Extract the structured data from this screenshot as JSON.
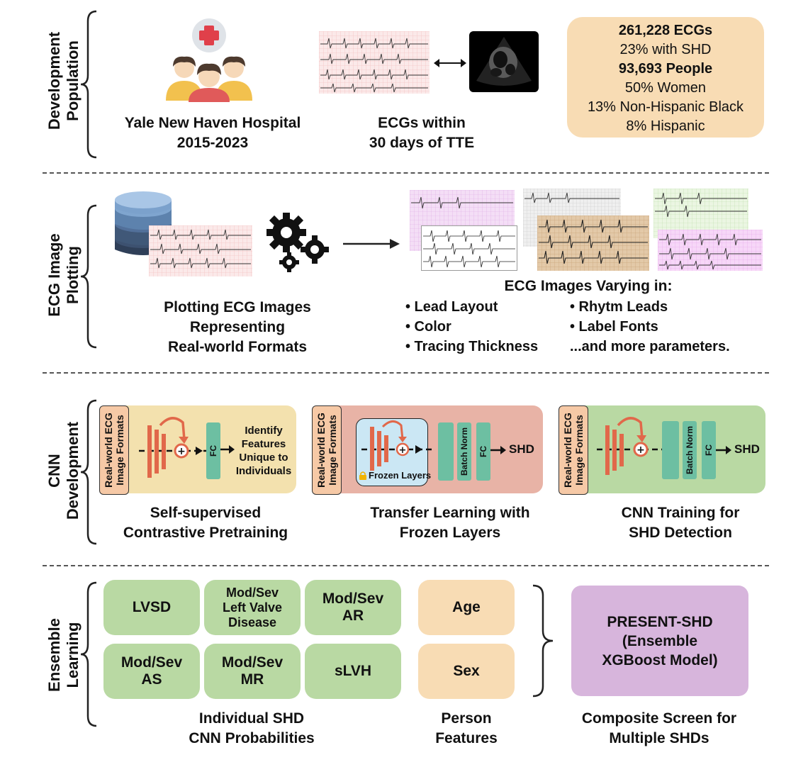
{
  "sections": {
    "development": [
      "Development",
      "Population"
    ],
    "plotting": [
      "ECG Image",
      "Plotting"
    ],
    "cnn": [
      "CNN",
      "Development"
    ],
    "ensemble": [
      "Ensemble",
      "Learning"
    ]
  },
  "population": {
    "hospital": [
      "Yale New Haven Hospital",
      "2015-2023"
    ],
    "ecg_caption": [
      "ECGs within",
      "30 days of TTE"
    ],
    "stats": {
      "ecgs": "261,228 ECGs",
      "shd": "23% with SHD",
      "people": "93,693 People",
      "women": "50% Women",
      "black": "13% Non-Hispanic Black",
      "hispanic": "8% Hispanic"
    }
  },
  "plotting": {
    "left_caption": [
      "Plotting ECG Images",
      "Representing",
      "Real-world Formats"
    ],
    "varying_title": "ECG Images Varying in:",
    "col1": [
      "• Lead Layout",
      "• Color",
      "• Tracing Thickness"
    ],
    "col2": [
      "• Rhytm Leads",
      "• Label Fonts",
      "...and more parameters."
    ]
  },
  "cnn": {
    "input_label": [
      "Real-world ECG",
      "Image Formats"
    ],
    "fc": "FC",
    "batch_norm": "Batch Norm",
    "shd": "SHD",
    "identify": [
      "Identify",
      "Features",
      "Unique to",
      "Individuals"
    ],
    "frozen": "Frozen Layers",
    "captions": {
      "p1": [
        "Self-supervised",
        "Contrastive Pretraining"
      ],
      "p2": [
        "Transfer Learning with",
        "Frozen Layers"
      ],
      "p3": [
        "CNN Training for",
        "SHD Detection"
      ]
    },
    "colors": {
      "panel1": "#f3e1ae",
      "panel2": "#e8b3a6",
      "panel3": "#b9d9a3",
      "orange": "#e1684a"
    }
  },
  "ensemble": {
    "models": [
      "LVSD",
      "Mod/Sev\nLeft Valve\nDisease",
      "Mod/Sev\nAR",
      "Mod/Sev\nAS",
      "Mod/Sev\nMR",
      "sLVH"
    ],
    "features": [
      "Age",
      "Sex"
    ],
    "result": [
      "PRESENT-SHD",
      "(Ensemble",
      "XGBoost Model)"
    ],
    "captions": {
      "models": [
        "Individual SHD",
        "CNN Probabilities"
      ],
      "features": [
        "Person",
        "Features"
      ],
      "result": [
        "Composite Screen for",
        "Multiple SHDs"
      ]
    },
    "colors": {
      "green": "#b9d9a3",
      "peach": "#f8dcb4",
      "purple": "#d7b5dc"
    }
  }
}
